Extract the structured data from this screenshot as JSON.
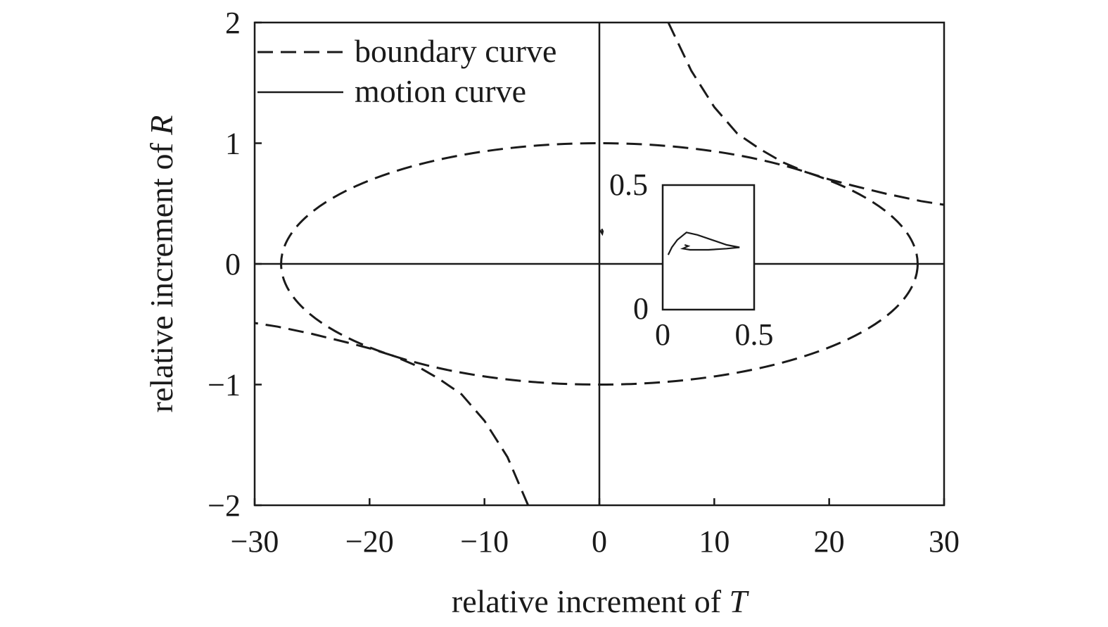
{
  "chart_data": {
    "type": "line",
    "xlabel": "relative increment of",
    "xlabel_var": "T",
    "ylabel": "relative increment of",
    "ylabel_var": "R",
    "xlim": [
      -30,
      30
    ],
    "ylim": [
      -2,
      2
    ],
    "xticks": [
      -30,
      -20,
      -10,
      0,
      10,
      20,
      30
    ],
    "yticks": [
      -2,
      -1,
      0,
      1,
      2
    ],
    "xtick_labels": [
      "−30",
      "−20",
      "−10",
      "0",
      "10",
      "20",
      "30"
    ],
    "ytick_labels": [
      "−2",
      "−1",
      "0",
      "1",
      "2"
    ],
    "grid": false,
    "legend_position": "top-left",
    "series": [
      {
        "name": "boundary curve",
        "style": "dashed",
        "parts": [
          {
            "kind": "ellipse",
            "cx": 0,
            "cy": 0,
            "rx": 27.7,
            "ry": 1.0
          },
          {
            "kind": "hyperbola-upper",
            "points": [
              [
                6,
                2
              ],
              [
                8,
                1.6
              ],
              [
                10,
                1.3
              ],
              [
                12,
                1.08
              ],
              [
                14,
                0.95
              ],
              [
                16,
                0.84
              ],
              [
                18,
                0.76
              ],
              [
                20,
                0.7
              ],
              [
                22,
                0.65
              ],
              [
                25,
                0.58
              ],
              [
                28,
                0.52
              ],
              [
                30,
                0.49
              ]
            ]
          },
          {
            "kind": "hyperbola-lower",
            "points": [
              [
                -6.2,
                -2
              ],
              [
                -8,
                -1.6
              ],
              [
                -10,
                -1.3
              ],
              [
                -12,
                -1.08
              ],
              [
                -14,
                -0.95
              ],
              [
                -16,
                -0.84
              ],
              [
                -18,
                -0.76
              ],
              [
                -20,
                -0.7
              ],
              [
                -22,
                -0.65
              ],
              [
                -25,
                -0.58
              ],
              [
                -28,
                -0.52
              ],
              [
                -30,
                -0.49
              ]
            ]
          }
        ]
      },
      {
        "name": "motion curve",
        "style": "solid",
        "points": [
          [
            0.05,
            0.28
          ],
          [
            0.25,
            0.25
          ],
          [
            0.3,
            0.27
          ],
          [
            0.2,
            0.29
          ]
        ]
      }
    ],
    "inset": {
      "xlim": [
        0,
        0.5
      ],
      "ylim": [
        0,
        0.5
      ],
      "xtick_labels": [
        "0",
        "0.5"
      ],
      "ytick_labels": [
        "0",
        "0.5"
      ],
      "motion_points": [
        [
          0.03,
          0.22
        ],
        [
          0.05,
          0.25
        ],
        [
          0.08,
          0.28
        ],
        [
          0.13,
          0.31
        ],
        [
          0.19,
          0.3
        ],
        [
          0.27,
          0.28
        ],
        [
          0.35,
          0.26
        ],
        [
          0.42,
          0.25
        ],
        [
          0.35,
          0.245
        ],
        [
          0.25,
          0.24
        ],
        [
          0.15,
          0.24
        ],
        [
          0.11,
          0.245
        ],
        [
          0.14,
          0.255
        ],
        [
          0.12,
          0.26
        ]
      ]
    }
  }
}
